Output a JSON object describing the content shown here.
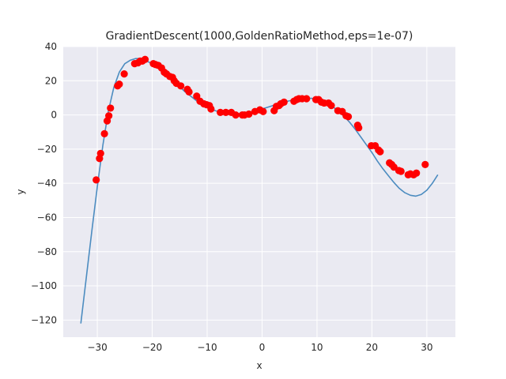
{
  "chart_data": {
    "type": "scatter",
    "title": "GradientDescent(1000,GoldenRatioMethod,eps=1e-07)",
    "xlabel": "x",
    "ylabel": "y",
    "xlim": [
      -36.2,
      35.2
    ],
    "ylim": [
      -130,
      40
    ],
    "xticks": [
      -30,
      -20,
      -10,
      0,
      10,
      20,
      30
    ],
    "yticks": [
      -120,
      -100,
      -80,
      -60,
      -40,
      -20,
      0,
      20,
      40
    ],
    "xtick_labels": [
      "−30",
      "−20",
      "−10",
      "0",
      "10",
      "20",
      "30"
    ],
    "ytick_labels": [
      "−120",
      "−100",
      "−80",
      "−60",
      "−40",
      "−20",
      "0",
      "20",
      "40"
    ],
    "grid": true,
    "background": "#eaeaf2",
    "series": [
      {
        "kind": "line",
        "color": "#4c8cc0",
        "x": [
          -33.0,
          -32.0,
          -31.0,
          -30.0,
          -29.0,
          -28.0,
          -27.0,
          -26.0,
          -25.0,
          -24.0,
          -23.0,
          -22.0,
          -21.0,
          -20.0,
          -19.0,
          -18.0,
          -17.0,
          -16.0,
          -15.0,
          -14.0,
          -13.0,
          -12.0,
          -11.0,
          -10.0,
          -9.0,
          -8.0,
          -7.0,
          -6.0,
          -5.0,
          -4.0,
          -3.0,
          -2.0,
          -1.0,
          0.0,
          1.0,
          2.0,
          3.0,
          4.0,
          5.0,
          6.0,
          7.0,
          8.0,
          9.0,
          10.0,
          11.0,
          12.0,
          13.0,
          14.0,
          15.0,
          16.0,
          17.0,
          18.0,
          19.0,
          20.0,
          21.0,
          22.0,
          23.0,
          24.0,
          25.0,
          26.0,
          27.0,
          28.0,
          29.0,
          30.0,
          31.0,
          32.0
        ],
        "y": [
          -122,
          -95,
          -68,
          -42,
          -18,
          2,
          16,
          25,
          30,
          32,
          33,
          33,
          31.5,
          30,
          28,
          25.5,
          22.5,
          19.5,
          16.5,
          13.5,
          11,
          8.5,
          6.5,
          4.5,
          3,
          2,
          1.2,
          0.8,
          0.7,
          0.8,
          1.2,
          1.8,
          2.6,
          3.5,
          4.5,
          5.5,
          6.5,
          7.5,
          8.3,
          9,
          9.5,
          9.8,
          9.7,
          9.2,
          8.2,
          6.5,
          4.5,
          2,
          -1,
          -4.5,
          -8.5,
          -13,
          -17.5,
          -22,
          -27,
          -31.5,
          -35.5,
          -39.5,
          -43,
          -45.5,
          -47,
          -47.5,
          -46.5,
          -44,
          -40,
          -35
        ]
      },
      {
        "kind": "points",
        "color": "#ff0000",
        "x": [
          -30.2,
          -29.6,
          -29.4,
          -28.7,
          -28.2,
          -27.9,
          -27.6,
          -26.3,
          -26.0,
          -25.1,
          -23.2,
          -22.6,
          -22.2,
          -21.8,
          -21.3,
          -19.8,
          -19.4,
          -18.9,
          -18.3,
          -17.8,
          -17.4,
          -16.8,
          -16.3,
          -16.0,
          -15.6,
          -14.8,
          -13.6,
          -13.3,
          -11.9,
          -11.3,
          -10.6,
          -10.1,
          -9.6,
          -9.3,
          -7.6,
          -6.6,
          -5.6,
          -4.8,
          -3.6,
          -3.2,
          -2.4,
          -1.3,
          -0.4,
          0.2,
          2.2,
          2.6,
          3.1,
          3.4,
          4.0,
          5.8,
          6.3,
          6.7,
          7.3,
          8.1,
          9.8,
          10.3,
          10.8,
          11.3,
          12.1,
          12.6,
          13.8,
          14.6,
          15.3,
          15.7,
          17.4,
          17.6,
          19.9,
          20.6,
          21.2,
          21.5,
          23.2,
          23.6,
          24.0,
          24.9,
          25.3,
          26.6,
          27.0,
          27.6,
          28.1,
          29.7
        ],
        "y": [
          -38,
          -25.5,
          -22.5,
          -11,
          -3.5,
          -0.5,
          4,
          17,
          18,
          24,
          30,
          30.5,
          31.5,
          31.5,
          32.5,
          30,
          29.5,
          29,
          27.5,
          25,
          24,
          22.5,
          22,
          20,
          18.5,
          17,
          15,
          13.5,
          11,
          8,
          6.5,
          6,
          5.5,
          3.5,
          1.5,
          1.5,
          1.5,
          0,
          0,
          0,
          0.5,
          2,
          3,
          2,
          2.5,
          5,
          5.5,
          6.5,
          7.5,
          8,
          9,
          9.5,
          9.5,
          9.5,
          9,
          9,
          7.5,
          7,
          7,
          5.5,
          2.5,
          2,
          -0.5,
          -1,
          -6,
          -7.5,
          -18,
          -18,
          -20.5,
          -21.5,
          -28,
          -29,
          -30.5,
          -32.5,
          -33,
          -35,
          -34.5,
          -35,
          -34,
          -29
        ]
      }
    ]
  }
}
